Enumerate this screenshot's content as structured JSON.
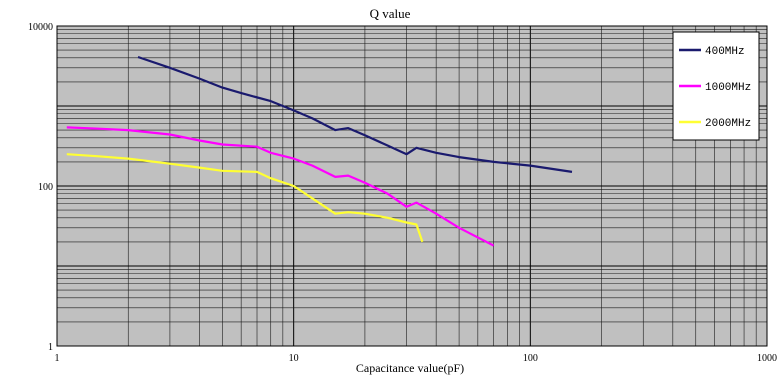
{
  "chart_data": {
    "type": "line",
    "title": "Q value",
    "xlabel": "Capacitance value(pF)",
    "ylabel": "",
    "x_scale": "log",
    "y_scale": "log",
    "xlim": [
      1,
      1000
    ],
    "ylim": [
      1,
      10000
    ],
    "x_ticks": [
      "1",
      "10",
      "100",
      "1000"
    ],
    "y_ticks": [
      "1",
      "100",
      "10000"
    ],
    "grid": true,
    "legend_position": "top-right",
    "series": [
      {
        "name": "400MHz",
        "color": "#1a1a6e",
        "points": [
          [
            2.2,
            4100
          ],
          [
            3,
            3000
          ],
          [
            4,
            2200
          ],
          [
            5,
            1700
          ],
          [
            6,
            1450
          ],
          [
            8,
            1150
          ],
          [
            10,
            880
          ],
          [
            12,
            700
          ],
          [
            15,
            500
          ],
          [
            17,
            530
          ],
          [
            20,
            430
          ],
          [
            25,
            320
          ],
          [
            30,
            250
          ],
          [
            33,
            300
          ],
          [
            40,
            260
          ],
          [
            50,
            230
          ],
          [
            70,
            200
          ],
          [
            100,
            180
          ],
          [
            150,
            150
          ]
        ]
      },
      {
        "name": "1000MHz",
        "color": "#ff00ff",
        "points": [
          [
            1.1,
            540
          ],
          [
            1.5,
            520
          ],
          [
            2,
            500
          ],
          [
            3,
            440
          ],
          [
            4,
            370
          ],
          [
            5,
            330
          ],
          [
            7,
            310
          ],
          [
            8,
            260
          ],
          [
            10,
            220
          ],
          [
            12,
            180
          ],
          [
            15,
            130
          ],
          [
            17,
            135
          ],
          [
            20,
            110
          ],
          [
            25,
            80
          ],
          [
            30,
            55
          ],
          [
            33,
            62
          ],
          [
            40,
            45
          ],
          [
            50,
            30
          ],
          [
            70,
            18
          ]
        ]
      },
      {
        "name": "2000MHz",
        "color": "#ffff33",
        "points": [
          [
            1.1,
            250
          ],
          [
            1.5,
            235
          ],
          [
            2,
            220
          ],
          [
            3,
            190
          ],
          [
            4,
            170
          ],
          [
            5,
            155
          ],
          [
            7,
            150
          ],
          [
            8,
            125
          ],
          [
            10,
            100
          ],
          [
            12,
            70
          ],
          [
            15,
            45
          ],
          [
            17,
            47
          ],
          [
            20,
            45
          ],
          [
            25,
            40
          ],
          [
            30,
            35
          ],
          [
            33,
            33
          ],
          [
            35,
            20
          ]
        ]
      }
    ]
  }
}
